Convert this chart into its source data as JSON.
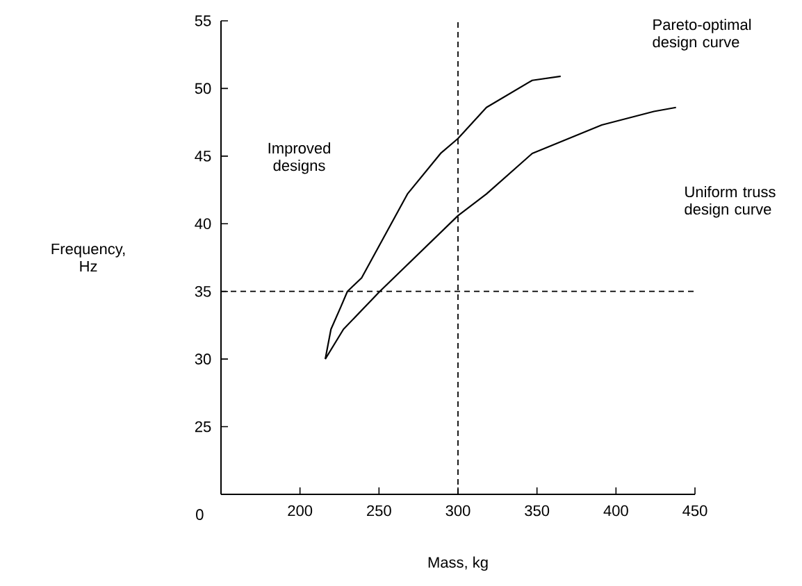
{
  "chart_data": {
    "type": "line",
    "xlabel": "Mass, kg",
    "ylabel": "Frequency, Hz",
    "xlim": [
      150,
      450
    ],
    "ylim": [
      20,
      55
    ],
    "xticks": [
      200,
      250,
      300,
      350,
      400,
      450
    ],
    "yticks": [
      25,
      30,
      35,
      40,
      45,
      50,
      55
    ],
    "marker": "none",
    "line_style": "solid",
    "series": [
      {
        "name": "Pareto-optimal design curve",
        "color": "#000000",
        "x": [
          216,
          219.6,
          226,
          230,
          239,
          268,
          289,
          300,
          318,
          347,
          365
        ],
        "values": [
          30,
          32.2,
          33.9,
          35,
          36,
          42.2,
          45.2,
          46.3,
          48.6,
          50.6,
          50.9
        ]
      },
      {
        "name": "Uniform truss design curve",
        "color": "#000000",
        "x": [
          216,
          227.5,
          239,
          250.5,
          300,
          318,
          347,
          391,
          424,
          438
        ],
        "values": [
          30,
          32.2,
          33.6,
          35,
          40.6,
          42.2,
          45.2,
          47.3,
          48.3,
          48.6
        ]
      }
    ],
    "ref_lines": [
      {
        "axis": "x",
        "value": 300,
        "line_style": "dashed"
      },
      {
        "axis": "y",
        "value": 35,
        "line_style": "dashed"
      }
    ],
    "annotations": [
      "Improved designs",
      "0"
    ]
  }
}
